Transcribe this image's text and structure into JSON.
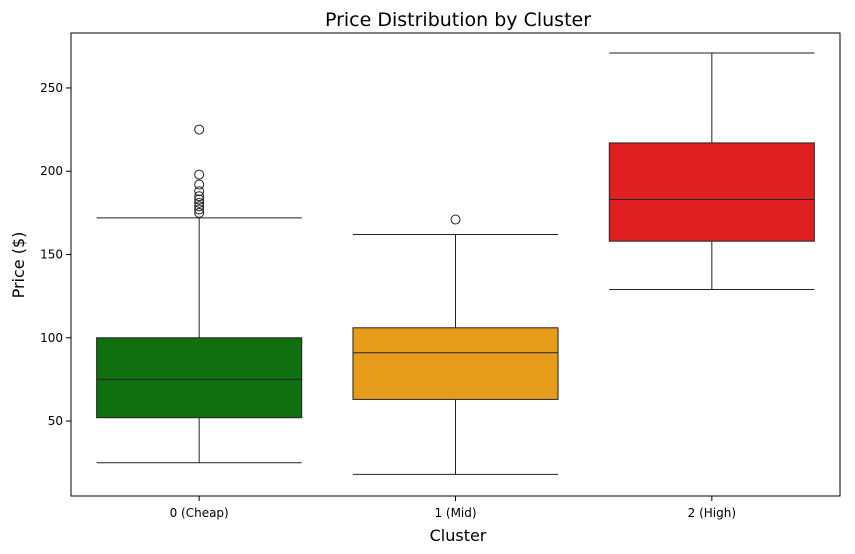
{
  "chart_data": {
    "type": "box",
    "title": "Price Distribution by Cluster",
    "xlabel": "Cluster",
    "ylabel": "Price ($)",
    "ylim": [
      5,
      283
    ],
    "yticks": [
      50,
      100,
      150,
      200,
      250
    ],
    "categories": [
      "0 (Cheap)",
      "1 (Mid)",
      "2 (High)"
    ],
    "colors": [
      "#107010",
      "#e69c1a",
      "#e02020"
    ],
    "grid": false,
    "boxes": [
      {
        "category": "0 (Cheap)",
        "whisker_low": 25,
        "q1": 52,
        "median": 75,
        "q3": 100,
        "whisker_high": 172,
        "outliers": [
          175,
          177,
          179,
          181,
          183,
          185,
          188,
          192,
          198,
          225
        ]
      },
      {
        "category": "1 (Mid)",
        "whisker_low": 18,
        "q1": 63,
        "median": 91,
        "q3": 106,
        "whisker_high": 162,
        "outliers": [
          171
        ]
      },
      {
        "category": "2 (High)",
        "whisker_low": 129,
        "q1": 158,
        "median": 183,
        "q3": 217,
        "whisker_high": 271,
        "outliers": []
      }
    ]
  }
}
